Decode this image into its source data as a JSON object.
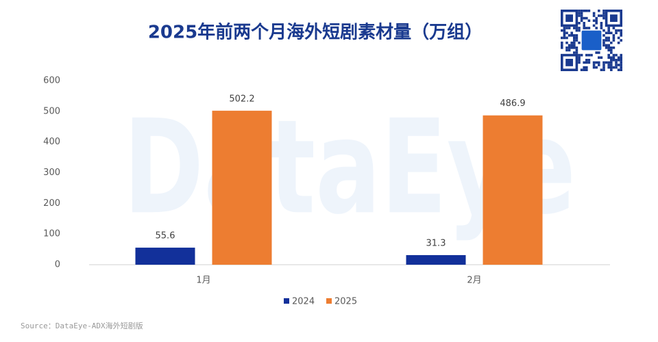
{
  "chart_data": {
    "type": "bar",
    "title": "2025年前两个月海外短剧素材量（万组）",
    "watermark": "DataEye",
    "source": "Source：DataEye-ADX海外短剧版",
    "categories": [
      "1月",
      "2月"
    ],
    "series": [
      {
        "name": "2024",
        "color": "#12309a",
        "values": [
          55.6,
          31.3
        ]
      },
      {
        "name": "2025",
        "color": "#ed7d31",
        "values": [
          502.2,
          486.9
        ]
      }
    ],
    "ylim": [
      0,
      600
    ],
    "yticks": [
      0,
      100,
      200,
      300,
      400,
      500,
      600
    ],
    "grid": false,
    "legend": "bottom"
  }
}
